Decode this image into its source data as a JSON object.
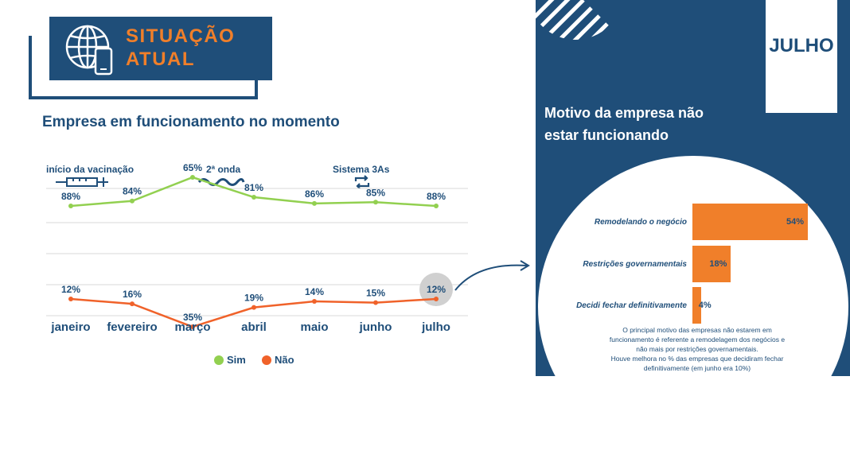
{
  "header": {
    "line1": "SITUAÇÃO",
    "line2": "ATUAL"
  },
  "left": {
    "heading": "Empresa em funcionamento no momento",
    "events": [
      {
        "label": "início da vacinação",
        "icon": "syringe-icon"
      },
      {
        "label": "2ª onda",
        "icon": "wave-icon"
      },
      {
        "label": "Sistema 3As",
        "icon": "cycle-icon"
      }
    ]
  },
  "chart_data": [
    {
      "type": "line",
      "categories": [
        "janeiro",
        "fevereiro",
        "março",
        "abril",
        "maio",
        "junho",
        "julho"
      ],
      "series": [
        {
          "name": "Sim",
          "values": [
            88,
            84,
            65,
            81,
            86,
            85,
            88
          ],
          "labels": [
            "88%",
            "84%",
            "65%",
            "81%",
            "86%",
            "85%",
            "88%"
          ],
          "color": "#92d050"
        },
        {
          "name": "Não",
          "values": [
            12,
            16,
            35,
            19,
            14,
            15,
            12
          ],
          "labels": [
            "12%",
            "16%",
            "35%",
            "19%",
            "14%",
            "15%",
            "12%"
          ],
          "color": "#f0622a"
        }
      ],
      "grid": true,
      "legend": "bottom"
    },
    {
      "type": "bar",
      "title": "Motivo da empresa não estar funcionando",
      "categories": [
        "Remodelando o negócio",
        "Restrições governamentais",
        "Decidi fechar definitivamente"
      ],
      "values": [
        54,
        18,
        4
      ],
      "labels": [
        "54%",
        "18%",
        "4%"
      ],
      "color": "#f07f2a"
    }
  ],
  "panel": {
    "month": "JULHO",
    "title_line1": "Motivo da empresa não",
    "title_line2": "estar funcionando",
    "note_lines": [
      "O principal motivo das empresas não estarem em",
      "funcionamento é referente a remodelagem dos negócios e",
      "não mais por restrições governamentais.",
      "Houve melhora no % das empresas que decidiram fechar",
      "definitivamente (em junho era 10%)"
    ]
  },
  "colors": {
    "brand_blue": "#1f4e79",
    "orange": "#f07f2a",
    "green": "#92d050"
  }
}
